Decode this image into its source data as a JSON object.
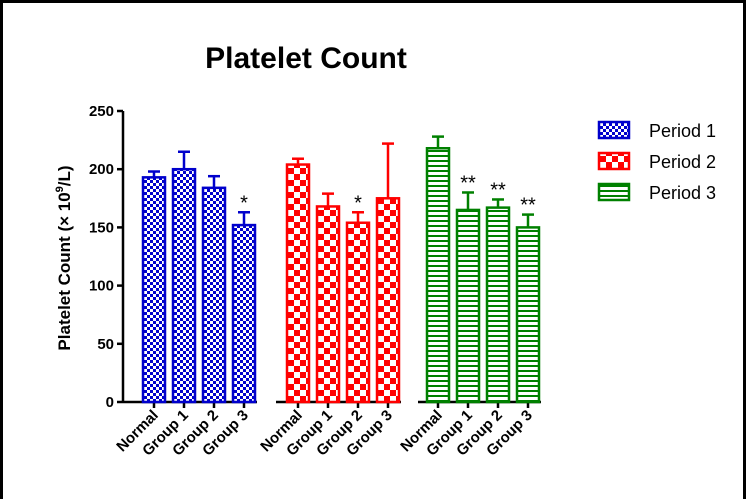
{
  "chart_data": {
    "type": "bar",
    "title": "Platelet Count",
    "ylabel_main": "Platelet Count (× 10",
    "ylabel_sup": "9",
    "ylabel_tail": "/L)",
    "ylim": [
      0,
      250
    ],
    "yticks": [
      0,
      50,
      100,
      150,
      200,
      250
    ],
    "categories": [
      "Normal",
      "Group 1",
      "Group 2",
      "Group 3"
    ],
    "legend_position": "right",
    "series": [
      {
        "name": "Period 1",
        "color": "#0000cc",
        "pattern": "checker-small",
        "values": [
          193,
          200,
          184,
          152
        ],
        "errors": [
          5,
          15,
          10,
          11
        ],
        "annotations": [
          "",
          "",
          "",
          "*"
        ]
      },
      {
        "name": "Period 2",
        "color": "#ff0000",
        "pattern": "checker-large",
        "values": [
          204,
          168,
          154,
          175
        ],
        "errors": [
          5,
          11,
          9,
          47
        ],
        "annotations": [
          "",
          "",
          "*",
          ""
        ]
      },
      {
        "name": "Period 3",
        "color": "#008000",
        "pattern": "horizontal-lines",
        "values": [
          218,
          165,
          167,
          150
        ],
        "errors": [
          10,
          15,
          7,
          11
        ],
        "annotations": [
          "",
          "**",
          "**",
          "**"
        ]
      }
    ]
  }
}
